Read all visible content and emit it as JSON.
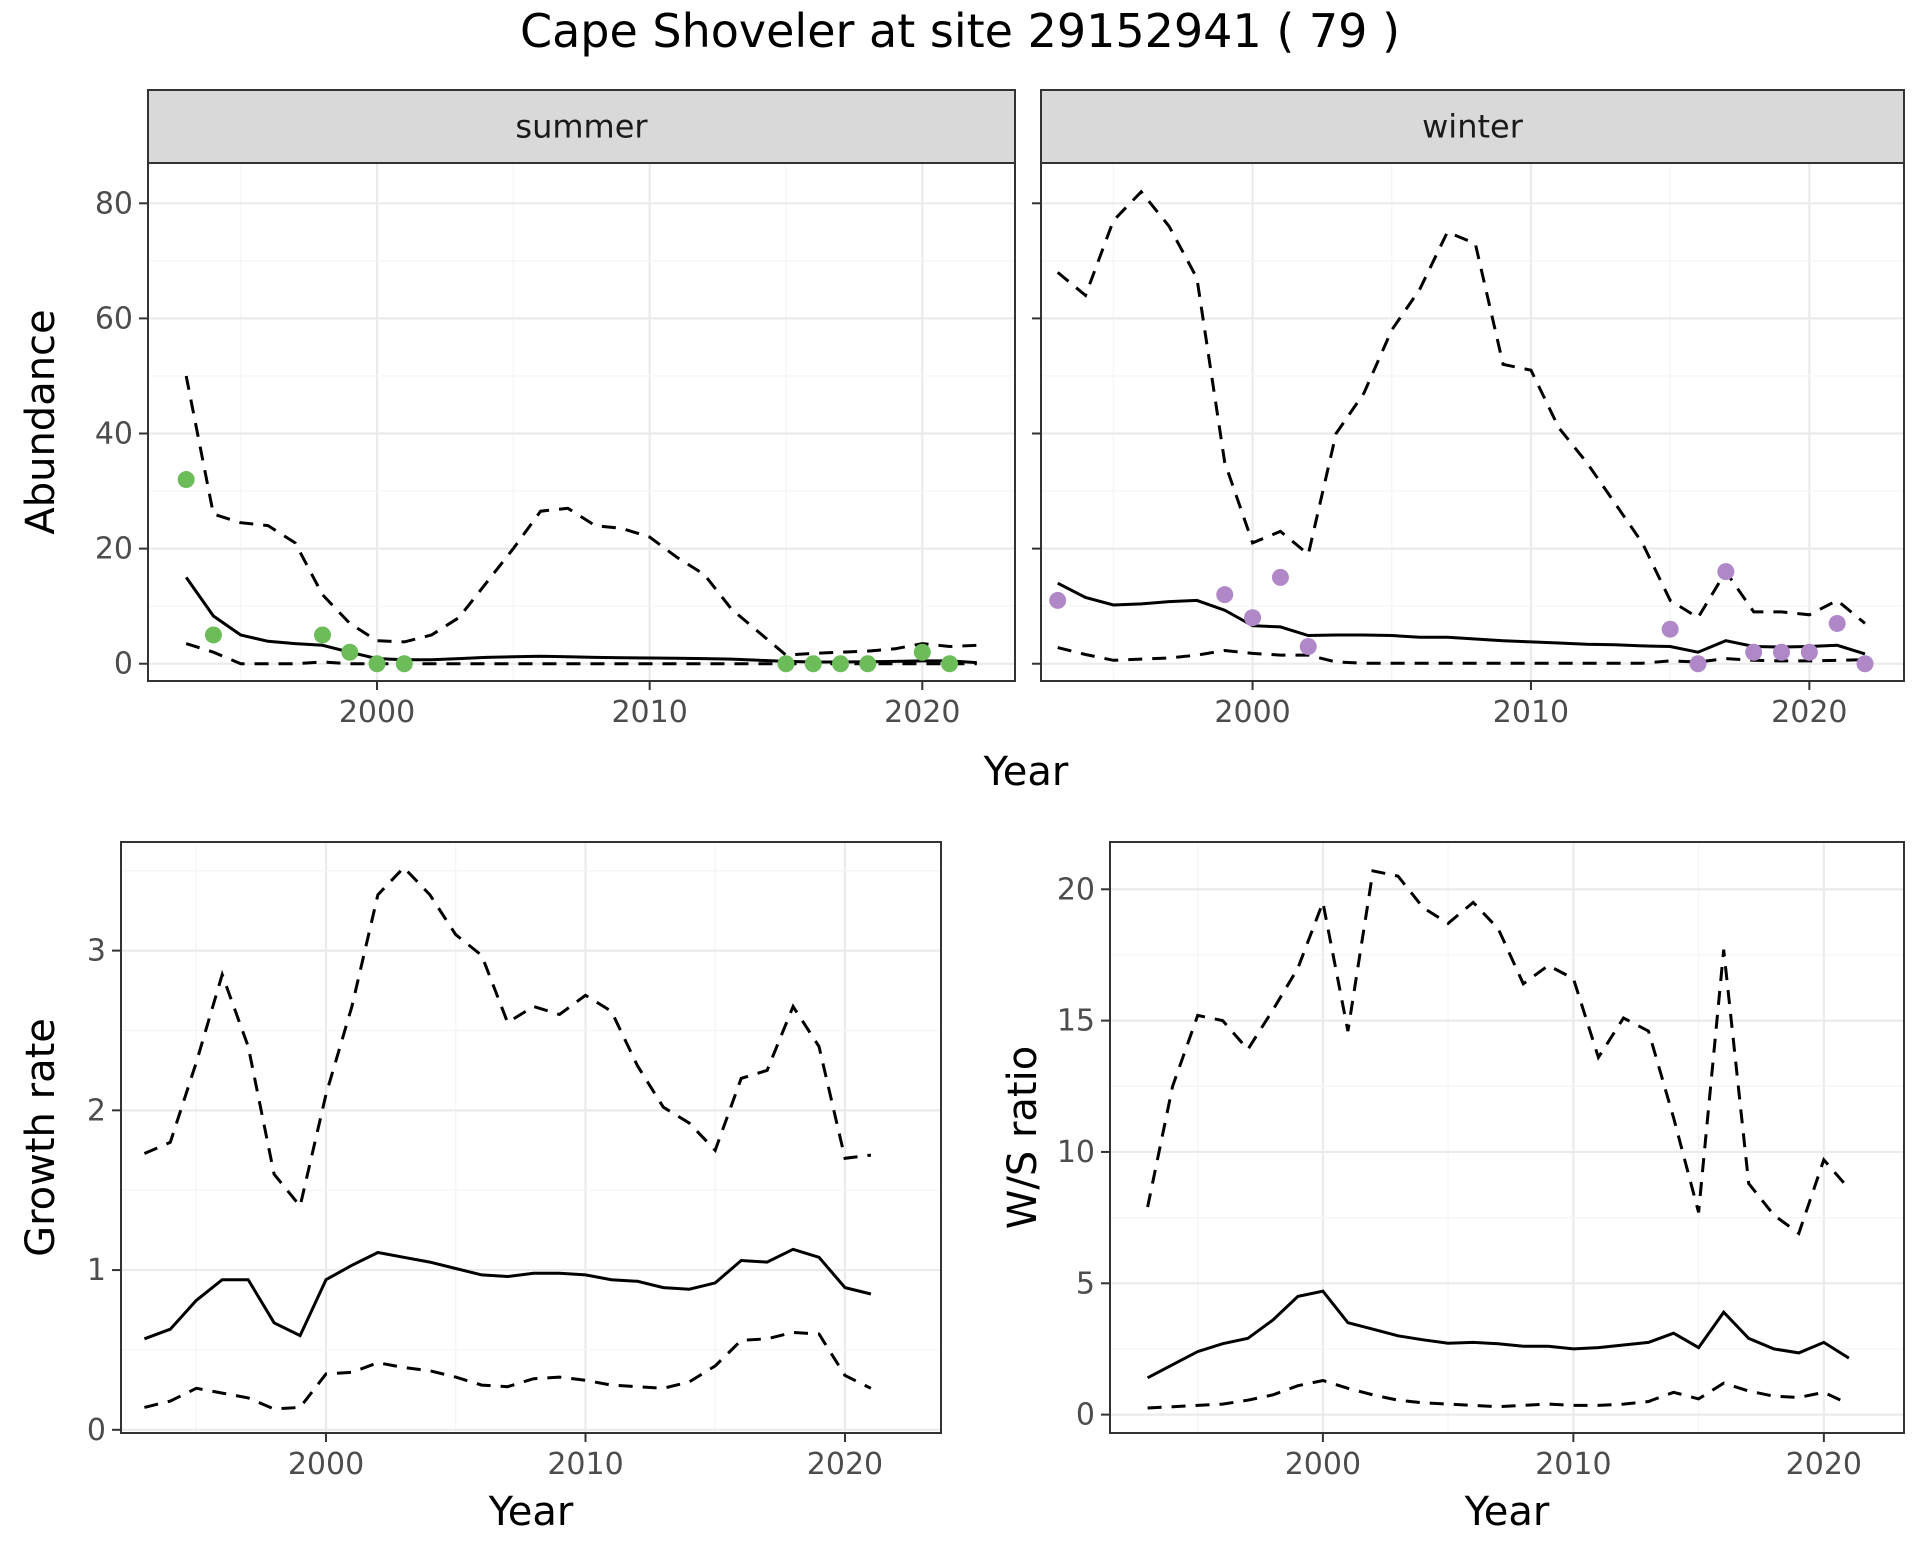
{
  "chart_data": {
    "title": "Cape Shoveler at site 29152941 ( 79 )",
    "type": "line",
    "colors": {
      "summer_points": "#6cbd5a",
      "winter_points": "#b088c8",
      "lines": "#000000"
    },
    "panels": [
      {
        "id": "summer",
        "strip": "summer",
        "type": "line+scatter",
        "xlabel": "Year",
        "ylabel": "Abundance",
        "show_xlabel": false,
        "ylim": [
          -3,
          87
        ],
        "xlim": [
          1991.6,
          2023.4
        ],
        "x_ticks": [
          2000,
          2010,
          2020
        ],
        "y_ticks": [
          0,
          20,
          40,
          60,
          80
        ],
        "grid": true,
        "series": [
          {
            "style": "solid",
            "x": [
              1993,
              1994,
              1995,
              1996,
              1997,
              1998,
              1999,
              2000,
              2001,
              2002,
              2003,
              2004,
              2005,
              2006,
              2007,
              2008,
              2009,
              2010,
              2011,
              2012,
              2013,
              2014,
              2015,
              2016,
              2017,
              2018,
              2019,
              2020,
              2021,
              2022
            ],
            "values": [
              15,
              8.3,
              5,
              3.9,
              3.5,
              3.2,
              2,
              0.9,
              0.7,
              0.7,
              0.9,
              1.1,
              1.2,
              1.3,
              1.2,
              1.1,
              1.05,
              1,
              0.95,
              0.9,
              0.8,
              0.6,
              0.4,
              0.3,
              0.3,
              0.35,
              0.4,
              0.5,
              0.5,
              0.2
            ]
          },
          {
            "style": "dashed",
            "x": [
              1993,
              1994,
              1995,
              1996,
              1997,
              1998,
              1999,
              2000,
              2001,
              2002,
              2003,
              2004,
              2005,
              2006,
              2007,
              2008,
              2009,
              2010,
              2011,
              2012,
              2013,
              2014,
              2015,
              2016,
              2017,
              2018,
              2019,
              2020,
              2021,
              2022
            ],
            "values": [
              50,
              26,
              24.5,
              24,
              21,
              12,
              7,
              4,
              3.8,
              5,
              8,
              14,
              20,
              26.5,
              27,
              24,
              23.5,
              22,
              18.5,
              15.5,
              9.5,
              5.5,
              1.5,
              1.8,
              2,
              2.2,
              2.6,
              3.5,
              3,
              3.2
            ]
          },
          {
            "style": "dashed",
            "x": [
              1993,
              1994,
              1995,
              1996,
              1997,
              1998,
              1999,
              2000,
              2001,
              2002,
              2003,
              2004,
              2005,
              2006,
              2007,
              2008,
              2009,
              2010,
              2011,
              2012,
              2013,
              2014,
              2015,
              2016,
              2017,
              2018,
              2019,
              2020,
              2021,
              2022
            ],
            "values": [
              3.5,
              2,
              0,
              0,
              0,
              0.3,
              0,
              0,
              0,
              0,
              0,
              0,
              0,
              0,
              0,
              0,
              0,
              0,
              0,
              0,
              0,
              0,
              0,
              0,
              0,
              0,
              0,
              0,
              0,
              0
            ]
          }
        ],
        "points": {
          "x": [
            1993,
            1994,
            1998,
            1999,
            2000,
            2001,
            2015,
            2016,
            2017,
            2018,
            2020,
            2021
          ],
          "values": [
            32,
            5,
            5,
            2,
            0,
            0,
            0,
            0,
            0,
            0,
            2,
            0
          ]
        }
      },
      {
        "id": "winter",
        "strip": "winter",
        "type": "line+scatter",
        "xlabel": "Year",
        "ylabel": "",
        "show_xlabel": false,
        "ylim": [
          -3,
          87
        ],
        "xlim": [
          1992.4,
          2023.4
        ],
        "x_ticks": [
          2000,
          2010,
          2020
        ],
        "y_ticks": [],
        "grid": true,
        "series": [
          {
            "style": "solid",
            "x": [
              1993,
              1994,
              1995,
              1996,
              1997,
              1998,
              1999,
              2000,
              2001,
              2002,
              2003,
              2004,
              2005,
              2006,
              2007,
              2008,
              2009,
              2010,
              2011,
              2012,
              2013,
              2014,
              2015,
              2016,
              2017,
              2018,
              2019,
              2020,
              2021,
              2022
            ],
            "values": [
              14,
              11.5,
              10.2,
              10.4,
              10.8,
              11,
              9.3,
              6.6,
              6.4,
              4.9,
              5,
              5,
              4.9,
              4.6,
              4.6,
              4.3,
              4,
              3.8,
              3.6,
              3.4,
              3.3,
              3.1,
              3,
              2,
              4,
              3,
              2.9,
              3,
              3.2,
              1.7
            ]
          },
          {
            "style": "dashed",
            "x": [
              1993,
              1994,
              1995,
              1996,
              1997,
              1998,
              1999,
              2000,
              2001,
              2002,
              2003,
              2004,
              2005,
              2006,
              2007,
              2008,
              2009,
              2010,
              2011,
              2012,
              2013,
              2014,
              2015,
              2016,
              2017,
              2018,
              2019,
              2020,
              2021,
              2022
            ],
            "values": [
              68,
              64,
              77,
              82,
              76,
              67,
              35,
              21,
              23,
              19,
              40,
              47,
              58,
              65,
              75,
              73,
              52,
              51,
              41,
              35,
              28,
              21,
              11,
              8,
              16,
              9,
              9,
              8.5,
              11,
              7
            ]
          },
          {
            "style": "dashed",
            "x": [
              1993,
              1994,
              1995,
              1996,
              1997,
              1998,
              1999,
              2000,
              2001,
              2002,
              2003,
              2004,
              2005,
              2006,
              2007,
              2008,
              2009,
              2010,
              2011,
              2012,
              2013,
              2014,
              2015,
              2016,
              2017,
              2018,
              2019,
              2020,
              2021,
              2022
            ],
            "values": [
              2.8,
              1.6,
              0.6,
              0.8,
              1,
              1.5,
              2.3,
              1.8,
              1.5,
              1.5,
              0.3,
              0.1,
              0.1,
              0.1,
              0.1,
              0.1,
              0.1,
              0.1,
              0.1,
              0.1,
              0.1,
              0.1,
              0.5,
              0.3,
              0.9,
              0.6,
              0.5,
              0.5,
              0.6,
              0.7
            ]
          }
        ],
        "points": {
          "x": [
            1993,
            1999,
            2000,
            2001,
            2002,
            2015,
            2016,
            2017,
            2018,
            2019,
            2020,
            2021,
            2022
          ],
          "values": [
            11,
            12,
            8,
            15,
            3,
            6,
            0,
            16,
            2,
            2,
            2,
            7,
            0
          ]
        }
      },
      {
        "id": "growth",
        "type": "line",
        "xlabel": "Year",
        "ylabel": "Growth rate",
        "show_xlabel": true,
        "ylim": [
          -0.02,
          3.68
        ],
        "xlim": [
          1992.1,
          2023.7
        ],
        "x_ticks": [
          2000,
          2010,
          2020
        ],
        "y_ticks": [
          0,
          1,
          2,
          3
        ],
        "grid": true,
        "series": [
          {
            "style": "solid",
            "x": [
              1993,
              1994,
              1995,
              1996,
              1997,
              1998,
              1999,
              2000,
              2001,
              2002,
              2003,
              2004,
              2005,
              2006,
              2007,
              2008,
              2009,
              2010,
              2011,
              2012,
              2013,
              2014,
              2015,
              2016,
              2017,
              2018,
              2019,
              2020,
              2021
            ],
            "values": [
              0.57,
              0.63,
              0.81,
              0.94,
              0.94,
              0.67,
              0.59,
              0.94,
              1.03,
              1.11,
              1.08,
              1.05,
              1.01,
              0.97,
              0.96,
              0.98,
              0.98,
              0.97,
              0.94,
              0.93,
              0.89,
              0.88,
              0.92,
              1.06,
              1.05,
              1.13,
              1.08,
              0.89,
              0.85
            ]
          },
          {
            "style": "dashed",
            "x": [
              1993,
              1994,
              1995,
              1996,
              1997,
              1998,
              1999,
              2000,
              2001,
              2002,
              2003,
              2004,
              2005,
              2006,
              2007,
              2008,
              2009,
              2010,
              2011,
              2012,
              2013,
              2014,
              2015,
              2016,
              2017,
              2018,
              2019,
              2020,
              2021
            ],
            "values": [
              1.73,
              1.8,
              2.3,
              2.85,
              2.4,
              1.6,
              1.4,
              2.1,
              2.65,
              3.35,
              3.52,
              3.35,
              3.1,
              2.97,
              2.55,
              2.65,
              2.6,
              2.72,
              2.62,
              2.28,
              2.02,
              1.92,
              1.75,
              2.2,
              2.25,
              2.65,
              2.4,
              1.7,
              1.72
            ]
          },
          {
            "style": "dashed",
            "x": [
              1993,
              1994,
              1995,
              1996,
              1997,
              1998,
              1999,
              2000,
              2001,
              2002,
              2003,
              2004,
              2005,
              2006,
              2007,
              2008,
              2009,
              2010,
              2011,
              2012,
              2013,
              2014,
              2015,
              2016,
              2017,
              2018,
              2019,
              2020,
              2021
            ],
            "values": [
              0.14,
              0.18,
              0.26,
              0.23,
              0.2,
              0.13,
              0.14,
              0.35,
              0.36,
              0.42,
              0.39,
              0.37,
              0.33,
              0.28,
              0.27,
              0.32,
              0.33,
              0.31,
              0.28,
              0.27,
              0.26,
              0.3,
              0.4,
              0.56,
              0.57,
              0.61,
              0.6,
              0.34,
              0.26
            ]
          }
        ]
      },
      {
        "id": "ratio",
        "type": "line",
        "xlabel": "Year",
        "ylabel": "W/S ratio",
        "show_xlabel": true,
        "ylim": [
          -0.7,
          21.8
        ],
        "xlim": [
          1991.5,
          2023.2
        ],
        "x_ticks": [
          2000,
          2010,
          2020
        ],
        "y_ticks": [
          0,
          5,
          10,
          15,
          20
        ],
        "grid": true,
        "series": [
          {
            "style": "solid",
            "x": [
              1993,
              1994,
              1995,
              1996,
              1997,
              1998,
              1999,
              2000,
              2001,
              2002,
              2003,
              2004,
              2005,
              2006,
              2007,
              2008,
              2009,
              2010,
              2011,
              2012,
              2013,
              2014,
              2015,
              2016,
              2017,
              2018,
              2019,
              2020,
              2021
            ],
            "values": [
              1.4,
              1.9,
              2.4,
              2.7,
              2.9,
              3.6,
              4.5,
              4.7,
              3.5,
              3.25,
              3,
              2.85,
              2.72,
              2.75,
              2.7,
              2.6,
              2.6,
              2.5,
              2.55,
              2.65,
              2.75,
              3.1,
              2.55,
              3.9,
              2.9,
              2.5,
              2.35,
              2.75,
              2.15
            ]
          },
          {
            "style": "dashed",
            "x": [
              1993,
              1994,
              1995,
              1996,
              1997,
              1998,
              1999,
              2000,
              2001,
              2002,
              2003,
              2004,
              2005,
              2006,
              2007,
              2008,
              2009,
              2010,
              2011,
              2012,
              2013,
              2014,
              2015,
              2016,
              2017,
              2018,
              2019,
              2020,
              2021
            ],
            "values": [
              7.9,
              12.5,
              15.2,
              15,
              13.9,
              15.4,
              17,
              19.5,
              14.6,
              20.7,
              20.5,
              19.3,
              18.7,
              19.5,
              18.5,
              16.4,
              17.1,
              16.6,
              13.6,
              15.1,
              14.6,
              11.3,
              7.7,
              17.7,
              8.8,
              7.6,
              6.9,
              9.7,
              8.6
            ]
          },
          {
            "style": "dashed",
            "x": [
              1993,
              1994,
              1995,
              1996,
              1997,
              1998,
              1999,
              2000,
              2001,
              2002,
              2003,
              2004,
              2005,
              2006,
              2007,
              2008,
              2009,
              2010,
              2011,
              2012,
              2013,
              2014,
              2015,
              2016,
              2017,
              2018,
              2019,
              2020,
              2021
            ],
            "values": [
              0.25,
              0.3,
              0.35,
              0.4,
              0.55,
              0.75,
              1.1,
              1.3,
              1,
              0.75,
              0.55,
              0.45,
              0.4,
              0.35,
              0.3,
              0.35,
              0.4,
              0.35,
              0.35,
              0.4,
              0.5,
              0.85,
              0.6,
              1.2,
              0.9,
              0.7,
              0.65,
              0.85,
              0.4
            ]
          }
        ]
      }
    ]
  }
}
